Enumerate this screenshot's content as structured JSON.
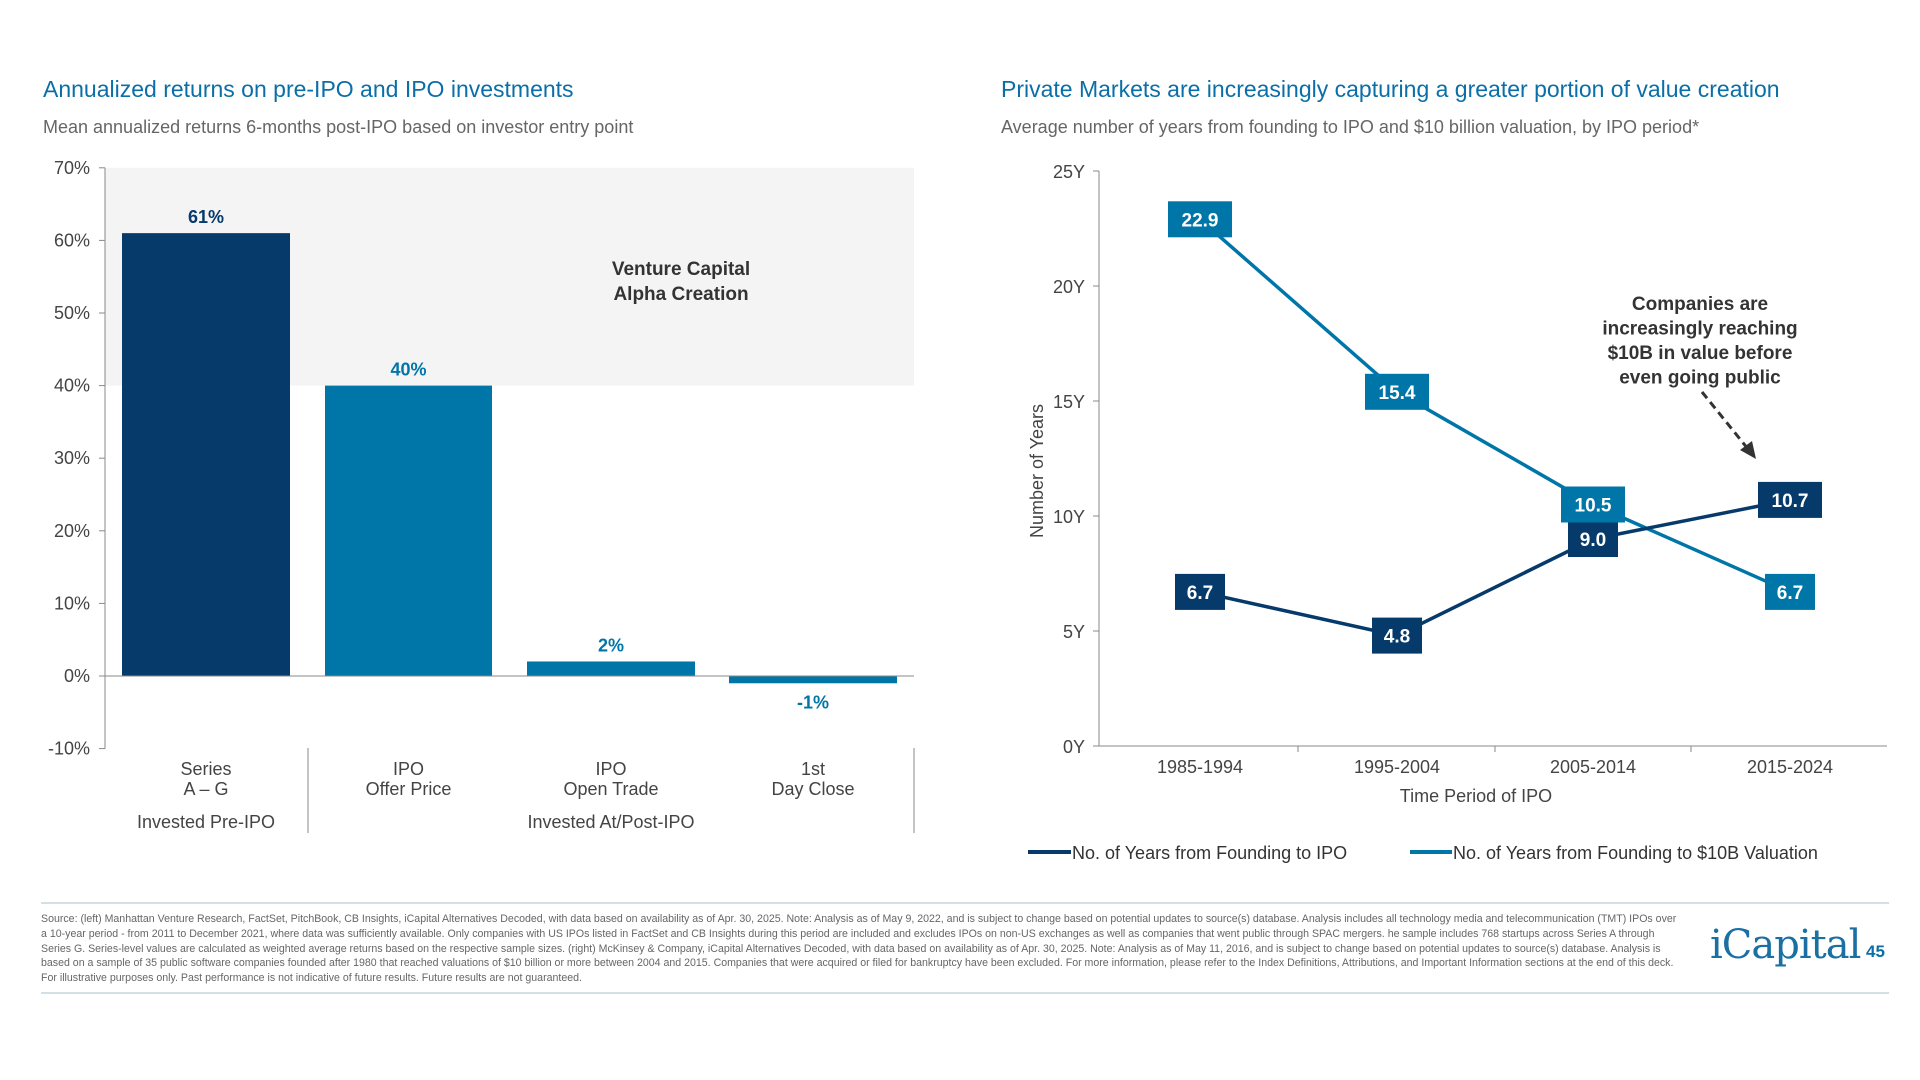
{
  "left": {
    "title": "Annualized returns on pre-IPO and IPO investments",
    "subtitle": "Mean annualized returns 6-months post-IPO based on investor entry point"
  },
  "right": {
    "title": "Private Markets are increasingly capturing a greater portion of value creation",
    "subtitle": "Average number of years from founding to IPO and $10 billion valuation, by IPO period*"
  },
  "chart_data": [
    {
      "type": "bar",
      "categories": [
        "Series\nA – G",
        "IPO\nOffer Price",
        "IPO\nOpen Trade",
        "1st\nDay Close"
      ],
      "values": [
        61,
        40,
        2,
        -1
      ],
      "data_labels": [
        "61%",
        "40%",
        "2%",
        "-1%"
      ],
      "colors": [
        "#063a6b",
        "#0076a8",
        "#0076a8",
        "#0076a8"
      ],
      "groups": [
        {
          "label": "Invested Pre-IPO",
          "categories": [
            0
          ]
        },
        {
          "label": "Invested At/Post-IPO",
          "categories": [
            1,
            2,
            3
          ]
        }
      ],
      "ylim": [
        -10,
        70
      ],
      "yticks": [
        "-10%",
        "0%",
        "10%",
        "20%",
        "30%",
        "40%",
        "50%",
        "60%",
        "70%"
      ],
      "shaded_region": {
        "from": 40,
        "to": 70,
        "label": "Venture Capital\nAlpha Creation",
        "color": "#f4f4f4"
      },
      "xlabel": "",
      "ylabel": ""
    },
    {
      "type": "line",
      "categories": [
        "1985-1994",
        "1995-2004",
        "2005-2014",
        "2015-2024"
      ],
      "series": [
        {
          "name": "No. of Years from Founding to IPO",
          "values": [
            6.7,
            4.8,
            9.0,
            10.7
          ],
          "labels": [
            "6.7",
            "4.8",
            "9.0",
            "10.7"
          ],
          "color": "#063a6b"
        },
        {
          "name": "No. of Years from Founding to $10B Valuation",
          "values": [
            22.9,
            15.4,
            10.5,
            6.7
          ],
          "labels": [
            "22.9",
            "15.4",
            "10.5",
            "6.7"
          ],
          "color": "#0076a8"
        }
      ],
      "ylim": [
        0,
        25
      ],
      "yticks": [
        "0Y",
        "5Y",
        "10Y",
        "15Y",
        "20Y",
        "25Y"
      ],
      "xlabel": "Time Period of IPO",
      "ylabel": "Number of Years",
      "legend": "bottom",
      "annotation": "Companies are\nincreasingly reaching\n$10B in value before\neven going public"
    }
  ],
  "footer": {
    "source": "Source: (left) Manhattan Venture Research, FactSet, PitchBook, CB Insights, iCapital Alternatives Decoded, with data based on availability as of Apr. 30, 2025. Note: Analysis as of May 9, 2022, and is subject to change based on potential updates to source(s) database. Analysis includes all technology media and telecommunication (TMT) IPOs over a 10-year period - from 2011 to December 2021, where data was sufficiently available. Only companies with US IPOs listed in FactSet and CB Insights during this period are included and excludes IPOs on non-US exchanges as well as companies that went public through SPAC mergers. he sample includes 768 startups across Series A through Series G. Series-level values are calculated as weighted average returns based on the respective sample sizes. (right) McKinsey & Company, iCapital Alternatives Decoded, with data based on availability as of Apr. 30, 2025. Note: Analysis as of May 11, 2016, and is subject to change based on potential updates to source(s) database. Analysis is based on a sample of 35 public software companies founded after 1980 that reached valuations of $10 billion or more between 2004 and 2015. Companies that were acquired or filed for bankruptcy have been excluded. For more information, please refer to the Index Definitions, Attributions, and Important Information sections at the end of this deck. For illustrative purposes only. Past performance is not indicative of future results. Future results are not guaranteed.",
    "logo": "iCapital",
    "page_number": "45"
  }
}
